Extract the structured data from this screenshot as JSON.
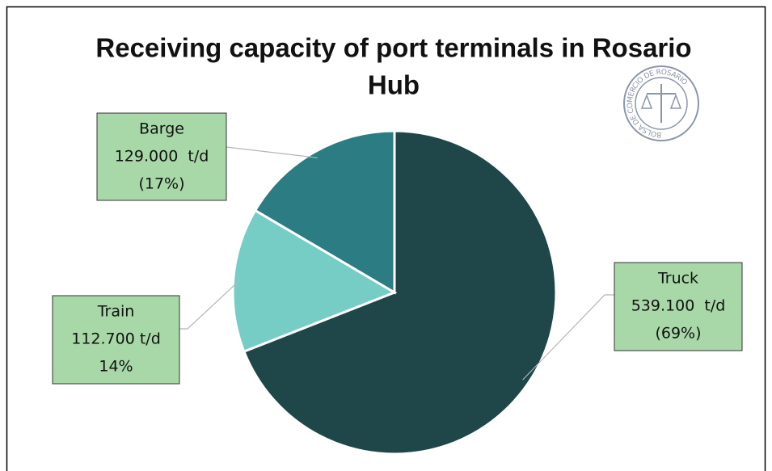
{
  "chart_data": {
    "type": "pie",
    "title": "Receiving capacity of port terminals in Rosario Hub",
    "categories": [
      "Truck",
      "Train",
      "Barge"
    ],
    "values": [
      539100,
      112700,
      129000
    ],
    "value_labels": [
      "539.100  t/d",
      "112.700 t/d",
      "129.000  t/d"
    ],
    "percent_labels": [
      "(69%)",
      "14%",
      "(17%)"
    ],
    "colors": [
      "#1f4649",
      "#76cdc6",
      "#2c7c83"
    ],
    "logo_text": "BOLSA DE COMERCIO DE ROSARIO"
  }
}
